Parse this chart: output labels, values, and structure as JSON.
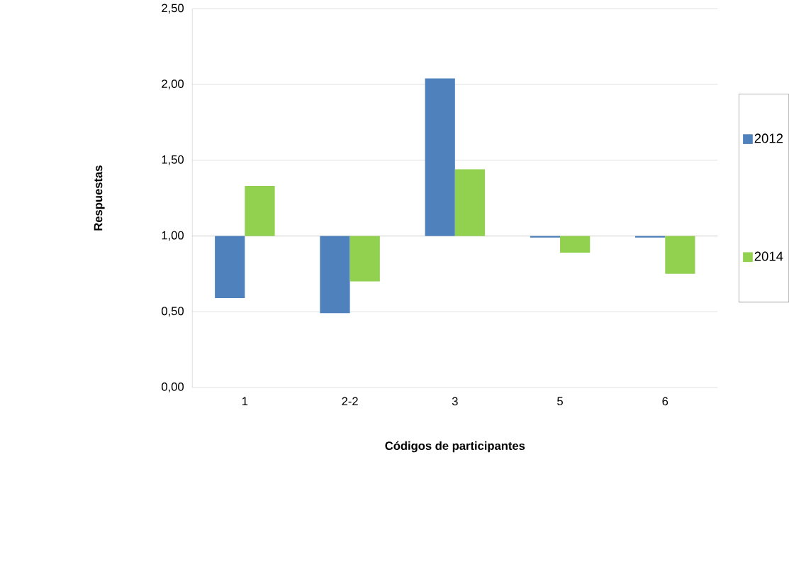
{
  "chart_data": {
    "type": "bar",
    "xlabel": "Códigos de participantes",
    "ylabel": "Respuestas",
    "categories": [
      "1",
      "2-2",
      "3",
      "5",
      "6"
    ],
    "series": [
      {
        "name": "2012",
        "color": "#4f81bd",
        "base": [
          1,
          1,
          1,
          1,
          1
        ],
        "values": [
          -0.41,
          -0.51,
          1.04,
          -0.01,
          -0.01
        ]
      },
      {
        "name": "2014",
        "color": "#92d050",
        "base": [
          1,
          1,
          1,
          1,
          1
        ],
        "values": [
          0.33,
          -0.3,
          0.44,
          -0.11,
          -0.25
        ]
      }
    ],
    "ref_lines": [
      {
        "axis": "y",
        "value": 1,
        "color": "#a6a6a6"
      }
    ],
    "ylim": [
      0,
      2.5
    ],
    "yticks": [
      {
        "value": 0,
        "label": "0,00"
      },
      {
        "value": 0.5,
        "label": "0,50"
      },
      {
        "value": 1,
        "label": "1,00"
      },
      {
        "value": 1.5,
        "label": "1,50"
      },
      {
        "value": 2,
        "label": "2,00"
      },
      {
        "value": 2.5,
        "label": "2,50"
      }
    ],
    "grid": "y",
    "legend": "right"
  }
}
